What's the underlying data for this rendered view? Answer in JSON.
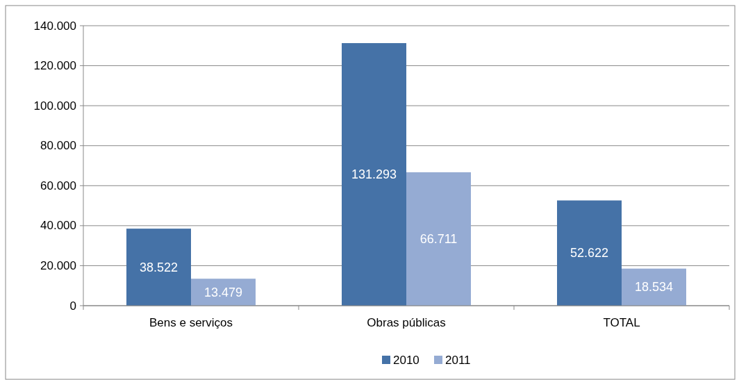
{
  "chart_data": {
    "type": "bar",
    "categories": [
      "Bens e serviços",
      "Obras públicas",
      "TOTAL"
    ],
    "series": [
      {
        "name": "2010",
        "color": "#4572a7",
        "values": [
          38522,
          131293,
          52622
        ],
        "value_labels": [
          "38.522",
          "131.293",
          "52.622"
        ]
      },
      {
        "name": "2011",
        "color": "#95abd3",
        "values": [
          13479,
          66711,
          18534
        ],
        "value_labels": [
          "13.479",
          "66.711",
          "18.534"
        ]
      }
    ],
    "ylim": [
      0,
      140000
    ],
    "yticks": [
      {
        "value": 0,
        "label": "0"
      },
      {
        "value": 20000,
        "label": "20.000"
      },
      {
        "value": 40000,
        "label": "40.000"
      },
      {
        "value": 60000,
        "label": "60.000"
      },
      {
        "value": 80000,
        "label": "80.000"
      },
      {
        "value": 100000,
        "label": "100.000"
      },
      {
        "value": 120000,
        "label": "120.000"
      },
      {
        "value": 140000,
        "label": "140.000"
      }
    ],
    "grid": "y",
    "legend": "bottom"
  }
}
